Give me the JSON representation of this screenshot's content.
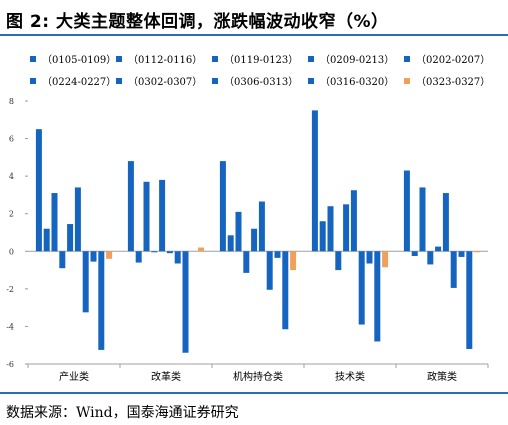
{
  "page": {
    "title": "图 2:  大类主题整体回调，涨跌幅波动收窄（%）",
    "source": "数据来源：Wind，国泰海通证券研究",
    "accent_color": "#2c6db3"
  },
  "chart_data": {
    "type": "bar",
    "ylim": [
      -6,
      8
    ],
    "yticks": [
      -6,
      -4,
      -2,
      0,
      2,
      4,
      6,
      8
    ],
    "grid": false,
    "legend_position": "top",
    "categories": [
      "产业类",
      "改革类",
      "机构持仓类",
      "技术类",
      "政策类"
    ],
    "series": [
      {
        "name": "（0105-0109）",
        "color": "#1565c0",
        "values": [
          6.5,
          4.8,
          4.8,
          7.5,
          4.3
        ]
      },
      {
        "name": "（0112-0116）",
        "color": "#1565c0",
        "values": [
          1.2,
          -0.6,
          0.85,
          1.6,
          -0.25
        ]
      },
      {
        "name": "（0119-0123）",
        "color": "#1565c0",
        "values": [
          3.1,
          3.7,
          2.1,
          2.4,
          3.4
        ]
      },
      {
        "name": "（0209-0213）",
        "color": "#1565c0",
        "values": [
          -0.9,
          -0.05,
          -1.15,
          -1.0,
          -0.7
        ]
      },
      {
        "name": "（0202-0207）",
        "color": "#1565c0",
        "values": [
          1.45,
          3.8,
          1.2,
          2.5,
          0.25
        ]
      },
      {
        "name": "（0224-0227）",
        "color": "#1565c0",
        "values": [
          3.4,
          -0.1,
          2.65,
          3.25,
          3.1
        ]
      },
      {
        "name": "（0302-0307）",
        "color": "#1565c0",
        "values": [
          -3.25,
          -0.65,
          -2.05,
          -3.9,
          -1.95
        ]
      },
      {
        "name": "（0306-0313）",
        "color": "#1565c0",
        "values": [
          -0.55,
          -5.4,
          -0.35,
          -0.65,
          -0.3
        ]
      },
      {
        "name": "（0316-0320）",
        "color": "#1565c0",
        "values": [
          -5.25,
          0.0,
          -4.15,
          -4.8,
          -5.2
        ]
      },
      {
        "name": "（0323-0327）",
        "color": "#f0a05a",
        "values": [
          -0.4,
          0.2,
          -1.0,
          -0.85,
          -0.05
        ]
      }
    ]
  }
}
